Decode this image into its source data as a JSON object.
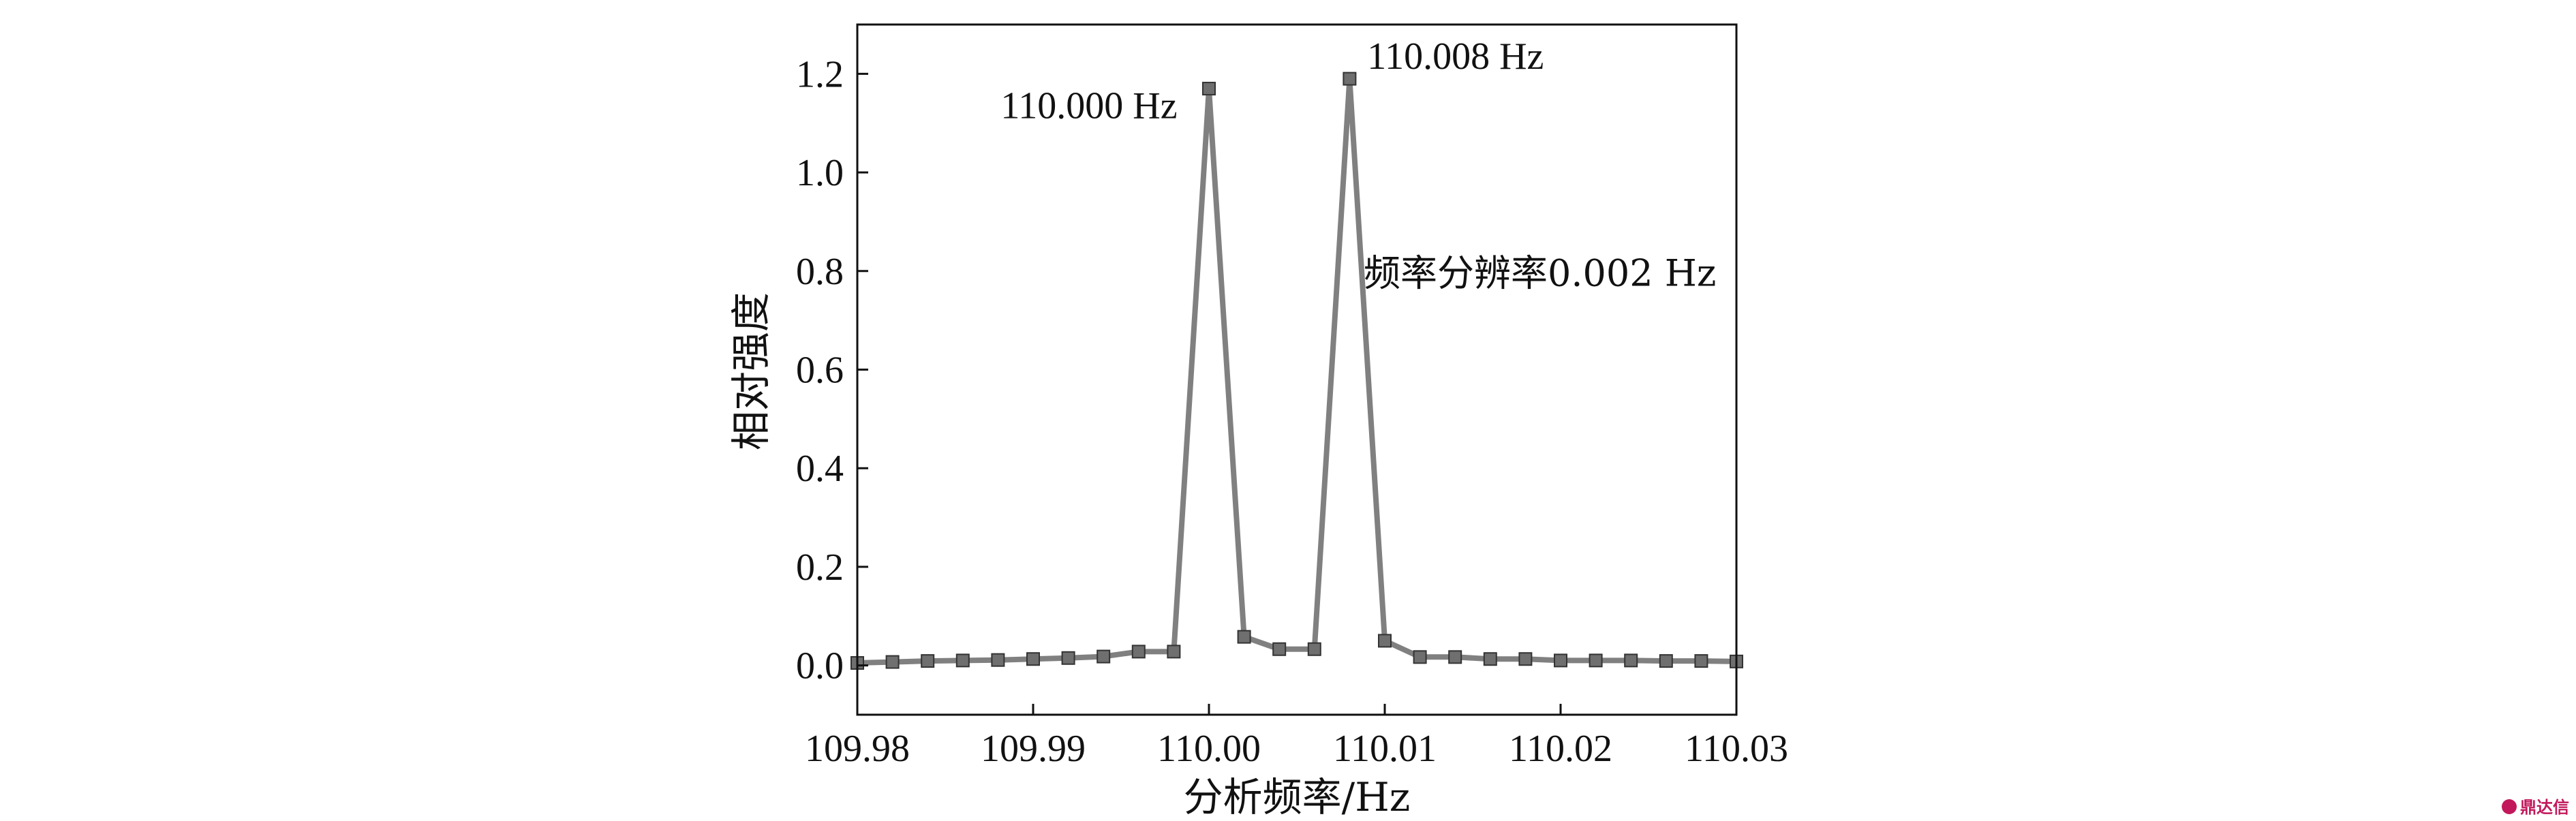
{
  "chart_data": {
    "type": "line",
    "title": "",
    "xlabel": "分析频率/Hz",
    "ylabel": "相对强度",
    "xlim": [
      109.98,
      110.03
    ],
    "ylim": [
      -0.1,
      1.3
    ],
    "x_ticks": [
      109.98,
      109.99,
      110.0,
      110.01,
      110.02,
      110.03
    ],
    "x_tick_labels": [
      "109.98",
      "109.99",
      "110.00",
      "110.01",
      "110.02",
      "110.03"
    ],
    "y_ticks": [
      0.0,
      0.2,
      0.4,
      0.6,
      0.8,
      1.0,
      1.2
    ],
    "y_tick_labels": [
      "0.0",
      "0.2",
      "0.4",
      "0.6",
      "0.8",
      "1.0",
      "1.2"
    ],
    "grid": false,
    "legend": "none",
    "series": [
      {
        "color": "#808080",
        "marker": "square",
        "x": [
          109.98,
          109.982,
          109.984,
          109.986,
          109.988,
          109.99,
          109.992,
          109.994,
          109.996,
          109.998,
          110.0,
          110.002,
          110.004,
          110.006,
          110.008,
          110.01,
          110.012,
          110.014,
          110.016,
          110.018,
          110.02,
          110.022,
          110.024,
          110.026,
          110.028,
          110.03
        ],
        "y": [
          0.005,
          0.007,
          0.009,
          0.01,
          0.011,
          0.013,
          0.015,
          0.018,
          0.028,
          0.028,
          1.17,
          0.058,
          0.033,
          0.033,
          1.19,
          0.05,
          0.017,
          0.017,
          0.013,
          0.013,
          0.01,
          0.01,
          0.01,
          0.009,
          0.009,
          0.008
        ]
      }
    ],
    "annotations": [
      {
        "text": "110.000 Hz",
        "x": 109.9982,
        "y": 1.11,
        "anchor": "end"
      },
      {
        "text": "110.008 Hz",
        "x": 110.009,
        "y": 1.21,
        "anchor": "start"
      },
      {
        "text": "频率分辨率0.002 Hz",
        "x": 110.0088,
        "y": 0.77,
        "anchor": "start"
      }
    ]
  },
  "watermark": {
    "text": "鼎达信"
  }
}
